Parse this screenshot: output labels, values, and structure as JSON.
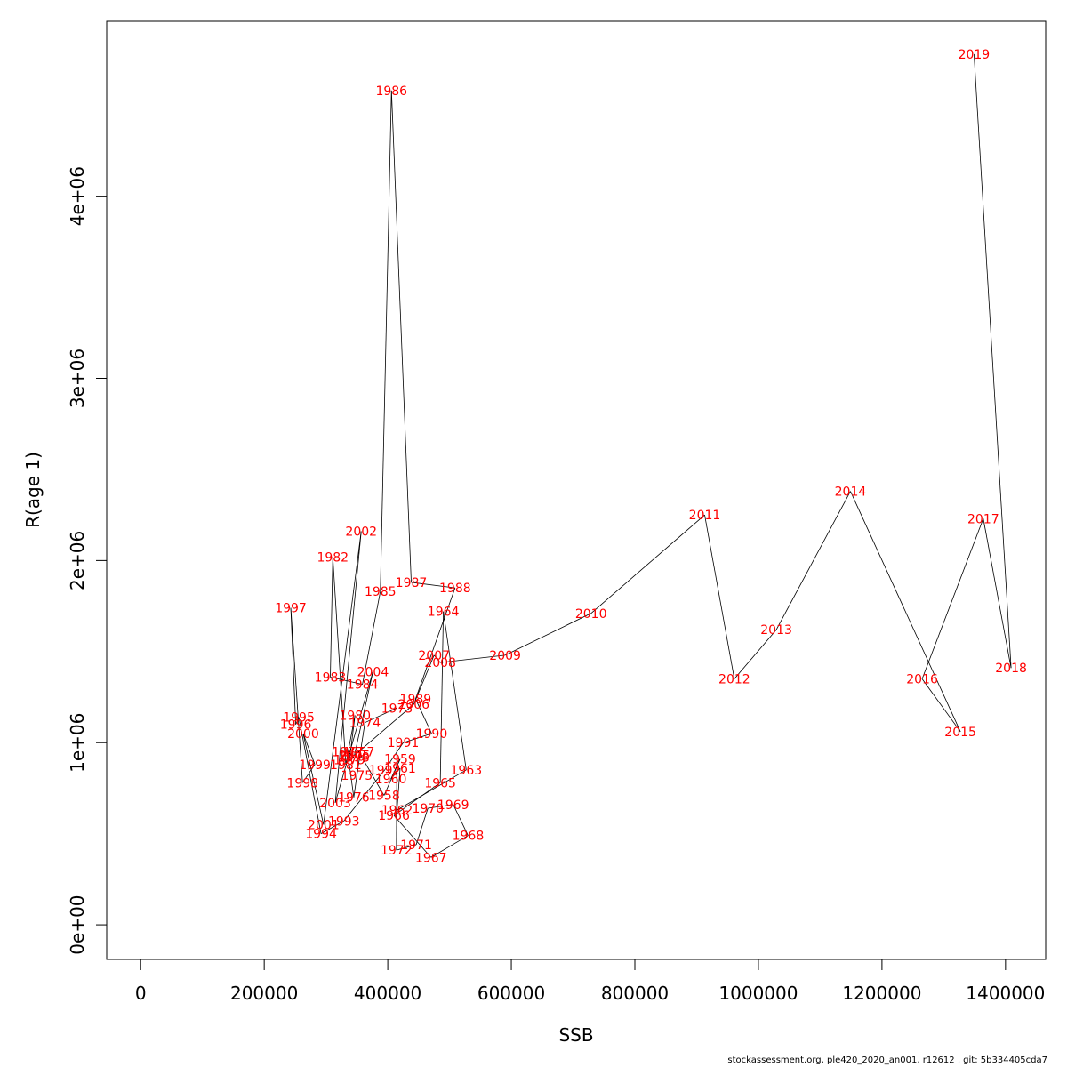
{
  "chart_data": {
    "type": "line",
    "xlabel": "SSB",
    "ylabel": "R(age 1)",
    "xlim": [
      -55000,
      1465000
    ],
    "ylim": [
      -190000,
      4960000
    ],
    "x_ticks": [
      {
        "value": 0,
        "label": "0"
      },
      {
        "value": 200000,
        "label": "200000"
      },
      {
        "value": 400000,
        "label": "400000"
      },
      {
        "value": 600000,
        "label": "600000"
      },
      {
        "value": 800000,
        "label": "800000"
      },
      {
        "value": 1000000,
        "label": "1000000"
      },
      {
        "value": 1200000,
        "label": "1200000"
      },
      {
        "value": 1400000,
        "label": "1400000"
      }
    ],
    "y_ticks": [
      {
        "value": 0,
        "label": "0e+00"
      },
      {
        "value": 1000000,
        "label": "1e+06"
      },
      {
        "value": 2000000,
        "label": "2e+06"
      },
      {
        "value": 3000000,
        "label": "3e+06"
      },
      {
        "value": 4000000,
        "label": "4e+06"
      }
    ],
    "points": [
      {
        "year": "1957",
        "ssb": 353000,
        "r": 950000
      },
      {
        "year": "1958",
        "ssb": 394000,
        "r": 710000
      },
      {
        "year": "1959",
        "ssb": 420000,
        "r": 910000
      },
      {
        "year": "1960",
        "ssb": 405000,
        "r": 800000
      },
      {
        "year": "1961",
        "ssb": 420000,
        "r": 860000
      },
      {
        "year": "1962",
        "ssb": 415000,
        "r": 630000
      },
      {
        "year": "1963",
        "ssb": 527000,
        "r": 850000
      },
      {
        "year": "1964",
        "ssb": 490000,
        "r": 1720000
      },
      {
        "year": "1965",
        "ssb": 485000,
        "r": 780000
      },
      {
        "year": "1966",
        "ssb": 410000,
        "r": 600000
      },
      {
        "year": "1967",
        "ssb": 470000,
        "r": 370000
      },
      {
        "year": "1968",
        "ssb": 530000,
        "r": 490000
      },
      {
        "year": "1969",
        "ssb": 506000,
        "r": 660000
      },
      {
        "year": "1970",
        "ssb": 465000,
        "r": 640000
      },
      {
        "year": "1971",
        "ssb": 446000,
        "r": 440000
      },
      {
        "year": "1972",
        "ssb": 414000,
        "r": 410000
      },
      {
        "year": "1973",
        "ssb": 415000,
        "r": 1190000
      },
      {
        "year": "1974",
        "ssb": 363000,
        "r": 1110000
      },
      {
        "year": "1975",
        "ssb": 350000,
        "r": 820000
      },
      {
        "year": "1976",
        "ssb": 345000,
        "r": 700000
      },
      {
        "year": "1977",
        "ssb": 335000,
        "r": 950000
      },
      {
        "year": "1978",
        "ssb": 345000,
        "r": 920000
      },
      {
        "year": "1979",
        "ssb": 338000,
        "r": 905000
      },
      {
        "year": "1980",
        "ssb": 347000,
        "r": 1150000
      },
      {
        "year": "1981",
        "ssb": 332000,
        "r": 880000
      },
      {
        "year": "1982",
        "ssb": 311000,
        "r": 2020000
      },
      {
        "year": "1983",
        "ssb": 307000,
        "r": 1360000
      },
      {
        "year": "1984",
        "ssb": 359000,
        "r": 1320000
      },
      {
        "year": "1985",
        "ssb": 388000,
        "r": 1830000
      },
      {
        "year": "1986",
        "ssb": 406000,
        "r": 4580000
      },
      {
        "year": "1987",
        "ssb": 438000,
        "r": 1880000
      },
      {
        "year": "1988",
        "ssb": 509000,
        "r": 1850000
      },
      {
        "year": "1989",
        "ssb": 445000,
        "r": 1240000
      },
      {
        "year": "1990",
        "ssb": 471000,
        "r": 1050000
      },
      {
        "year": "1991",
        "ssb": 425000,
        "r": 1000000
      },
      {
        "year": "1992",
        "ssb": 395000,
        "r": 850000
      },
      {
        "year": "1993",
        "ssb": 329000,
        "r": 570000
      },
      {
        "year": "1994",
        "ssb": 292000,
        "r": 500000
      },
      {
        "year": "1995",
        "ssb": 256000,
        "r": 1140000
      },
      {
        "year": "1996",
        "ssb": 251000,
        "r": 1100000
      },
      {
        "year": "1997",
        "ssb": 243000,
        "r": 1740000
      },
      {
        "year": "1998",
        "ssb": 262000,
        "r": 780000
      },
      {
        "year": "1999",
        "ssb": 282000,
        "r": 880000
      },
      {
        "year": "2000",
        "ssb": 263000,
        "r": 1050000
      },
      {
        "year": "2001",
        "ssb": 296000,
        "r": 550000
      },
      {
        "year": "2002",
        "ssb": 357000,
        "r": 2160000
      },
      {
        "year": "2003",
        "ssb": 315000,
        "r": 670000
      },
      {
        "year": "2004",
        "ssb": 376000,
        "r": 1390000
      },
      {
        "year": "2005",
        "ssb": 346000,
        "r": 930000
      },
      {
        "year": "2006",
        "ssb": 442000,
        "r": 1210000
      },
      {
        "year": "2007",
        "ssb": 475000,
        "r": 1480000
      },
      {
        "year": "2008",
        "ssb": 485000,
        "r": 1440000
      },
      {
        "year": "2009",
        "ssb": 590000,
        "r": 1480000
      },
      {
        "year": "2010",
        "ssb": 729000,
        "r": 1710000
      },
      {
        "year": "2011",
        "ssb": 913000,
        "r": 2250000
      },
      {
        "year": "2012",
        "ssb": 961000,
        "r": 1350000
      },
      {
        "year": "2013",
        "ssb": 1029000,
        "r": 1620000
      },
      {
        "year": "2014",
        "ssb": 1149000,
        "r": 2380000
      },
      {
        "year": "2015",
        "ssb": 1327000,
        "r": 1060000
      },
      {
        "year": "2016",
        "ssb": 1265000,
        "r": 1350000
      },
      {
        "year": "2017",
        "ssb": 1364000,
        "r": 2230000
      },
      {
        "year": "2018",
        "ssb": 1409000,
        "r": 1410000
      },
      {
        "year": "2019",
        "ssb": 1349000,
        "r": 4780000
      }
    ]
  },
  "footer_text": "stockassessment.org, ple420_2020_an001, r12612 , git: 5b334405cda7"
}
